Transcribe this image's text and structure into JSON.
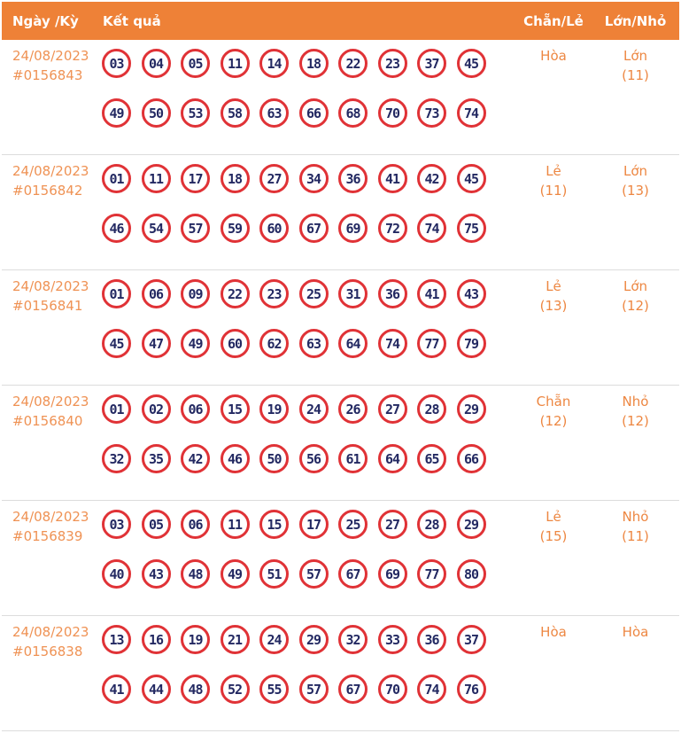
{
  "header": {
    "col_date": "Ngày /Kỳ",
    "col_result": "Kết quả",
    "col_even_odd": "Chẵn/Lẻ",
    "col_big_small": "Lớn/Nhỏ"
  },
  "colors": {
    "header_bg": "#EE8137",
    "accent_text": "#EF9254",
    "ball_border": "#E03236",
    "ball_number": "#232962",
    "divider": "#DCDCDC"
  },
  "rows": [
    {
      "date": "24/08/2023",
      "draw_id": "#0156843",
      "numbers_line1": [
        "03",
        "04",
        "05",
        "11",
        "14",
        "18",
        "22",
        "23",
        "37",
        "45"
      ],
      "numbers_line2": [
        "49",
        "50",
        "53",
        "58",
        "63",
        "66",
        "68",
        "70",
        "73",
        "74"
      ],
      "even_odd": "Hòa",
      "even_odd_count": "",
      "big_small": "Lớn",
      "big_small_count": "(11)"
    },
    {
      "date": "24/08/2023",
      "draw_id": "#0156842",
      "numbers_line1": [
        "01",
        "11",
        "17",
        "18",
        "27",
        "34",
        "36",
        "41",
        "42",
        "45"
      ],
      "numbers_line2": [
        "46",
        "54",
        "57",
        "59",
        "60",
        "67",
        "69",
        "72",
        "74",
        "75"
      ],
      "even_odd": "Lẻ",
      "even_odd_count": "(11)",
      "big_small": "Lớn",
      "big_small_count": "(13)"
    },
    {
      "date": "24/08/2023",
      "draw_id": "#0156841",
      "numbers_line1": [
        "01",
        "06",
        "09",
        "22",
        "23",
        "25",
        "31",
        "36",
        "41",
        "43"
      ],
      "numbers_line2": [
        "45",
        "47",
        "49",
        "60",
        "62",
        "63",
        "64",
        "74",
        "77",
        "79"
      ],
      "even_odd": "Lẻ",
      "even_odd_count": "(13)",
      "big_small": "Lớn",
      "big_small_count": "(12)"
    },
    {
      "date": "24/08/2023",
      "draw_id": "#0156840",
      "numbers_line1": [
        "01",
        "02",
        "06",
        "15",
        "19",
        "24",
        "26",
        "27",
        "28",
        "29"
      ],
      "numbers_line2": [
        "32",
        "35",
        "42",
        "46",
        "50",
        "56",
        "61",
        "64",
        "65",
        "66"
      ],
      "even_odd": "Chẵn",
      "even_odd_count": "(12)",
      "big_small": "Nhỏ",
      "big_small_count": "(12)"
    },
    {
      "date": "24/08/2023",
      "draw_id": "#0156839",
      "numbers_line1": [
        "03",
        "05",
        "06",
        "11",
        "15",
        "17",
        "25",
        "27",
        "28",
        "29"
      ],
      "numbers_line2": [
        "40",
        "43",
        "48",
        "49",
        "51",
        "57",
        "67",
        "69",
        "77",
        "80"
      ],
      "even_odd": "Lẻ",
      "even_odd_count": "(15)",
      "big_small": "Nhỏ",
      "big_small_count": "(11)"
    },
    {
      "date": "24/08/2023",
      "draw_id": "#0156838",
      "numbers_line1": [
        "13",
        "16",
        "19",
        "21",
        "24",
        "29",
        "32",
        "33",
        "36",
        "37"
      ],
      "numbers_line2": [
        "41",
        "44",
        "48",
        "52",
        "55",
        "57",
        "67",
        "70",
        "74",
        "76"
      ],
      "even_odd": "Hòa",
      "even_odd_count": "",
      "big_small": "Hòa",
      "big_small_count": ""
    }
  ]
}
